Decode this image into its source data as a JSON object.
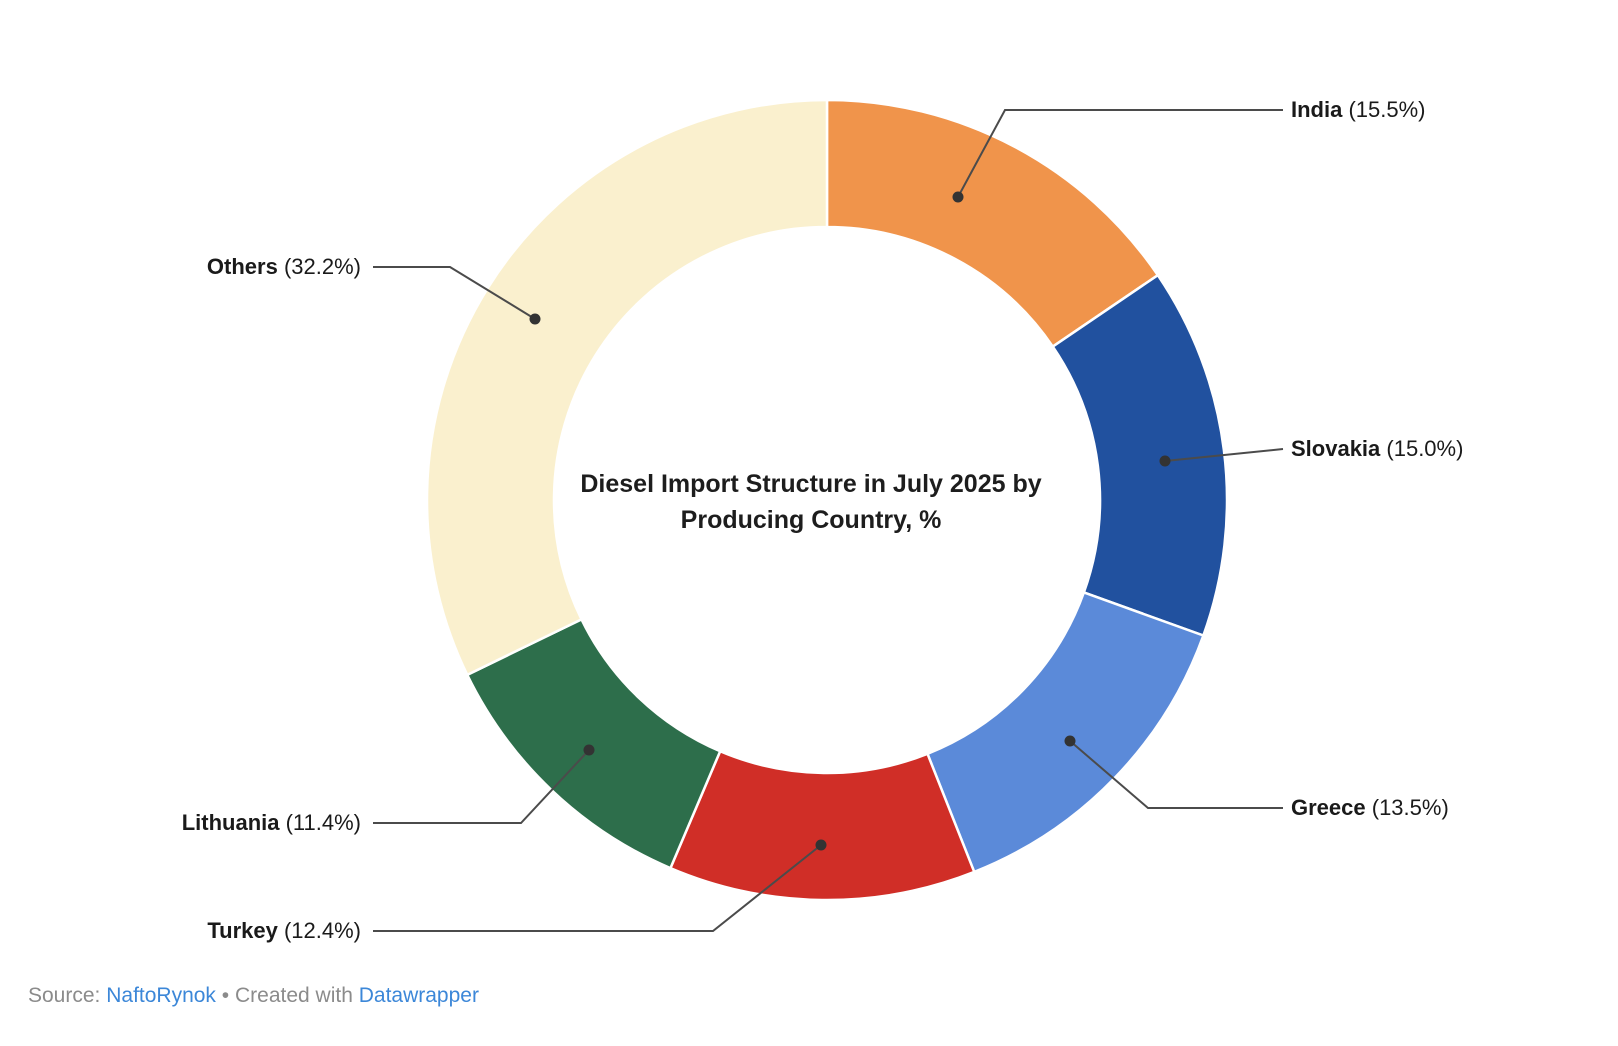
{
  "center_title": {
    "line1": "Diesel Import Structure in July 2025 by",
    "line2": "Producing Country, %"
  },
  "footer": {
    "source_prefix": "Source:",
    "source_link": "NaftoRynok",
    "separator": "•",
    "created_with": "Created with",
    "tool_link": "Datawrapper",
    "link_color": "#3c87d8",
    "text_color": "#8b8b8b"
  },
  "chart_data": {
    "type": "pie",
    "subtype": "donut",
    "title": "Diesel Import Structure in July 2025 by Producing Country, %",
    "start_angle_deg": 0,
    "direction": "clockwise",
    "legend": "none",
    "value_format": "label (value%)",
    "slices": [
      {
        "label": "India",
        "value": 15.5,
        "color": "#f0944b",
        "label_side": "right"
      },
      {
        "label": "Slovakia",
        "value": 15.0,
        "color": "#21519f",
        "label_side": "right"
      },
      {
        "label": "Greece",
        "value": 13.5,
        "color": "#5b8ad9",
        "label_side": "right"
      },
      {
        "label": "Turkey",
        "value": 12.4,
        "color": "#d02e27",
        "label_side": "left"
      },
      {
        "label": "Lithuania",
        "value": 11.4,
        "color": "#2d6e4b",
        "label_side": "left"
      },
      {
        "label": "Others",
        "value": 32.2,
        "color": "#faf0ce",
        "label_side": "left"
      }
    ],
    "slice_separator_color": "#ffffff",
    "leader_line_color": "#4b4b4b",
    "leader_dot_color": "#333333",
    "label_text_color": "#1a1a1a"
  }
}
